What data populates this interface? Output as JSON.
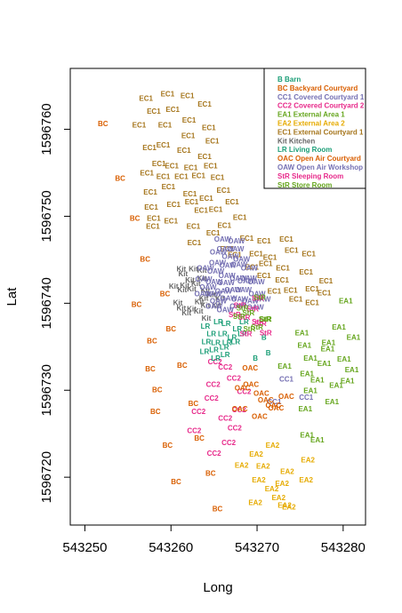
{
  "chart_data": {
    "type": "scatter",
    "xlabel": "Long",
    "ylabel": "Lat",
    "xlim": [
      543248.3,
      543282.6
    ],
    "ylim": [
      1596714.5,
      1596767.0
    ],
    "xticks": [
      543250,
      543260,
      543270,
      543280
    ],
    "yticks": [
      1596720,
      1596730,
      1596740,
      1596750,
      1596760
    ],
    "legend_position": "top-right",
    "legend": [
      {
        "code": "B",
        "label": "B Barn",
        "color": "#1b9e77"
      },
      {
        "code": "BC",
        "label": "BC Backyard Courtyard",
        "color": "#d95f02"
      },
      {
        "code": "CC1",
        "label": "CC1 Covered Courtyard 1",
        "color": "#7570b3"
      },
      {
        "code": "CC2",
        "label": "CC2 Covered Courtyard 2",
        "color": "#e7298a"
      },
      {
        "code": "EA1",
        "label": "EA1 External Area 1",
        "color": "#66a61e"
      },
      {
        "code": "EA2",
        "label": "EA2 External Area 2",
        "color": "#e6ab02"
      },
      {
        "code": "EC1",
        "label": "EC1 External Courtyard 1",
        "color": "#a6761d"
      },
      {
        "code": "Kit",
        "label": "Kit Kitchen",
        "color": "#666666"
      },
      {
        "code": "LR",
        "label": "LR Living Room",
        "color": "#1b9e77"
      },
      {
        "code": "OAC",
        "label": "OAC Open Air Courtyard",
        "color": "#d95f02"
      },
      {
        "code": "OAW",
        "label": "OAW Open Air Workshop",
        "color": "#7570b3"
      },
      {
        "code": "StR",
        "label": "StR Sleeping Room",
        "color": "#e7298a"
      },
      {
        "code": "StR",
        "label": "StR Store Room",
        "color": "#66a61e"
      }
    ],
    "series": [
      {
        "code": "B",
        "points": [
          [
            543270.8,
            1596736.0
          ],
          [
            543271.3,
            1596734.2
          ],
          [
            543269.8,
            1596733.6
          ]
        ]
      },
      {
        "code": "BC",
        "points": [
          [
            543252.1,
            1596760.6
          ],
          [
            543254.1,
            1596754.3
          ],
          [
            543255.8,
            1596749.7
          ],
          [
            543257.0,
            1596745.0
          ],
          [
            543256.0,
            1596739.8
          ],
          [
            543257.8,
            1596735.6
          ],
          [
            543257.6,
            1596732.4
          ],
          [
            543261.3,
            1596732.8
          ],
          [
            543260.0,
            1596737.0
          ],
          [
            543259.3,
            1596741.0
          ],
          [
            543258.4,
            1596730.0
          ],
          [
            543262.6,
            1596728.4
          ],
          [
            543258.2,
            1596727.5
          ],
          [
            543259.6,
            1596723.6
          ],
          [
            543263.3,
            1596724.4
          ],
          [
            543260.6,
            1596719.4
          ],
          [
            543264.6,
            1596720.4
          ],
          [
            543265.4,
            1596716.3
          ]
        ]
      },
      {
        "code": "CC1",
        "points": [
          [
            543273.4,
            1596731.2
          ],
          [
            543272.0,
            1596728.6
          ],
          [
            543275.7,
            1596729.1
          ]
        ]
      },
      {
        "code": "CC2",
        "points": [
          [
            543266.3,
            1596732.6
          ],
          [
            543264.9,
            1596730.6
          ],
          [
            543265.1,
            1596733.2
          ],
          [
            543267.3,
            1596731.3
          ],
          [
            543264.7,
            1596729.0
          ],
          [
            543268.5,
            1596729.8
          ],
          [
            543267.9,
            1596727.7
          ],
          [
            543266.3,
            1596726.7
          ],
          [
            543263.2,
            1596727.5
          ],
          [
            543267.4,
            1596725.6
          ],
          [
            543266.7,
            1596723.9
          ],
          [
            543262.7,
            1596725.3
          ],
          [
            543265.0,
            1596722.7
          ]
        ]
      },
      {
        "code": "EA1",
        "points": [
          [
            543280.3,
            1596740.2
          ],
          [
            543279.5,
            1596737.2
          ],
          [
            543281.2,
            1596736.0
          ],
          [
            543278.3,
            1596735.4
          ],
          [
            543280.1,
            1596733.5
          ],
          [
            543277.8,
            1596733.0
          ],
          [
            543276.2,
            1596733.6
          ],
          [
            543275.8,
            1596731.8
          ],
          [
            543277.0,
            1596731.1
          ],
          [
            543278.2,
            1596734.7
          ],
          [
            543281.0,
            1596732.3
          ],
          [
            543280.5,
            1596731.0
          ],
          [
            543279.2,
            1596730.5
          ],
          [
            543278.7,
            1596728.6
          ],
          [
            543276.2,
            1596729.9
          ],
          [
            543277.0,
            1596724.2
          ],
          [
            543275.5,
            1596735.1
          ],
          [
            543273.2,
            1596732.7
          ],
          [
            543275.2,
            1596736.5
          ],
          [
            543275.6,
            1596727.8
          ],
          [
            543275.8,
            1596724.8
          ]
        ]
      },
      {
        "code": "EA2",
        "points": [
          [
            543269.9,
            1596722.6
          ],
          [
            543271.8,
            1596723.6
          ],
          [
            543273.5,
            1596720.6
          ],
          [
            543272.9,
            1596719.2
          ],
          [
            543275.9,
            1596721.9
          ],
          [
            543275.7,
            1596719.6
          ],
          [
            543273.2,
            1596716.7
          ],
          [
            543272.5,
            1596717.6
          ],
          [
            543270.7,
            1596721.2
          ],
          [
            543268.2,
            1596721.3
          ],
          [
            543270.2,
            1596719.6
          ],
          [
            543271.7,
            1596718.6
          ],
          [
            543269.8,
            1596717.0
          ],
          [
            543273.7,
            1596716.5
          ]
        ]
      },
      {
        "code": "EC1",
        "points": [
          [
            543257.1,
            1596763.5
          ],
          [
            543259.6,
            1596764.0
          ],
          [
            543261.9,
            1596763.8
          ],
          [
            543263.9,
            1596762.8
          ],
          [
            543258.0,
            1596762.0
          ],
          [
            543260.2,
            1596762.2
          ],
          [
            543262.1,
            1596761.0
          ],
          [
            543264.4,
            1596760.1
          ],
          [
            543256.3,
            1596760.4
          ],
          [
            543259.3,
            1596760.4
          ],
          [
            543262.0,
            1596759.2
          ],
          [
            543264.8,
            1596758.6
          ],
          [
            543257.5,
            1596757.8
          ],
          [
            543259.1,
            1596758.1
          ],
          [
            543261.5,
            1596757.5
          ],
          [
            543263.9,
            1596756.8
          ],
          [
            543258.6,
            1596756.0
          ],
          [
            543260.1,
            1596755.7
          ],
          [
            543262.3,
            1596755.5
          ],
          [
            543264.6,
            1596755.7
          ],
          [
            543257.2,
            1596754.9
          ],
          [
            543259.1,
            1596754.5
          ],
          [
            543261.2,
            1596754.5
          ],
          [
            543263.2,
            1596754.6
          ],
          [
            543265.4,
            1596754.4
          ],
          [
            543266.1,
            1596752.9
          ],
          [
            543259.7,
            1596753.3
          ],
          [
            543262.2,
            1596752.5
          ],
          [
            543264.1,
            1596752.0
          ],
          [
            543267.1,
            1596751.6
          ],
          [
            543257.6,
            1596752.7
          ],
          [
            543257.7,
            1596751.0
          ],
          [
            543260.3,
            1596751.3
          ],
          [
            543262.4,
            1596751.6
          ],
          [
            543265.2,
            1596750.7
          ],
          [
            543268.0,
            1596749.8
          ],
          [
            543263.5,
            1596750.6
          ],
          [
            543260.0,
            1596749.4
          ],
          [
            543262.6,
            1596748.8
          ],
          [
            543264.9,
            1596748.0
          ],
          [
            543266.2,
            1596748.9
          ],
          [
            543258.0,
            1596749.7
          ],
          [
            543257.9,
            1596748.8
          ],
          [
            543262.7,
            1596746.9
          ],
          [
            543266.5,
            1596746.2
          ],
          [
            543268.8,
            1596747.4
          ],
          [
            543270.8,
            1596747.1
          ],
          [
            543273.4,
            1596747.3
          ],
          [
            543267.4,
            1596745.5
          ],
          [
            543269.9,
            1596745.6
          ],
          [
            543271.5,
            1596745.2
          ],
          [
            543274.0,
            1596746.0
          ],
          [
            543269.4,
            1596744.1
          ],
          [
            543271.0,
            1596744.5
          ],
          [
            543273.0,
            1596744.0
          ],
          [
            543276.0,
            1596745.6
          ],
          [
            543270.8,
            1596743.1
          ],
          [
            543272.9,
            1596742.6
          ],
          [
            543275.7,
            1596743.5
          ],
          [
            543272.0,
            1596741.3
          ],
          [
            543273.9,
            1596741.4
          ],
          [
            543276.4,
            1596741.6
          ],
          [
            543274.5,
            1596740.4
          ],
          [
            543276.4,
            1596740.0
          ],
          [
            543278.0,
            1596742.5
          ],
          [
            543277.8,
            1596741.1
          ]
        ]
      },
      {
        "code": "Kit",
        "points": [
          [
            543261.2,
            1596743.9
          ],
          [
            543262.6,
            1596743.9
          ],
          [
            543263.6,
            1596743.7
          ],
          [
            543261.4,
            1596743.3
          ],
          [
            543262.2,
            1596742.6
          ],
          [
            543261.6,
            1596742.0
          ],
          [
            543262.9,
            1596742.2
          ],
          [
            543263.6,
            1596742.8
          ],
          [
            543261.3,
            1596741.5
          ],
          [
            543262.4,
            1596741.6
          ],
          [
            543264.0,
            1596741.4
          ],
          [
            543260.3,
            1596741.9
          ],
          [
            543264.7,
            1596740.9
          ],
          [
            543265.7,
            1596740.5
          ],
          [
            543263.3,
            1596740.1
          ],
          [
            543261.2,
            1596739.4
          ],
          [
            543260.8,
            1596740.0
          ],
          [
            543262.4,
            1596739.3
          ],
          [
            543264.0,
            1596739.7
          ],
          [
            543265.3,
            1596739.7
          ],
          [
            543261.8,
            1596738.8
          ],
          [
            543263.2,
            1596739.0
          ],
          [
            543264.1,
            1596738.2
          ],
          [
            543263.8,
            1596740.5
          ]
        ]
      },
      {
        "code": "LR",
        "points": [
          [
            543264.0,
            1596737.3
          ],
          [
            543265.5,
            1596737.8
          ],
          [
            543266.4,
            1596737.6
          ],
          [
            543267.7,
            1596737.0
          ],
          [
            543268.5,
            1596737.8
          ],
          [
            543264.7,
            1596736.4
          ],
          [
            543266.0,
            1596736.4
          ],
          [
            543267.1,
            1596736.0
          ],
          [
            543268.3,
            1596736.4
          ],
          [
            543264.1,
            1596735.5
          ],
          [
            543265.2,
            1596735.4
          ],
          [
            543266.5,
            1596735.4
          ],
          [
            543263.9,
            1596734.4
          ],
          [
            543265.0,
            1596734.6
          ],
          [
            543266.2,
            1596734.9
          ],
          [
            543267.5,
            1596735.5
          ],
          [
            543265.2,
            1596733.6
          ],
          [
            543266.3,
            1596734.0
          ]
        ]
      },
      {
        "code": "OAC",
        "points": [
          [
            543269.2,
            1596732.5
          ],
          [
            543269.3,
            1596730.6
          ],
          [
            543268.0,
            1596727.8
          ],
          [
            543270.5,
            1596729.6
          ],
          [
            543270.3,
            1596726.9
          ],
          [
            543271.0,
            1596728.8
          ],
          [
            543272.2,
            1596727.9
          ],
          [
            543273.4,
            1596729.2
          ],
          [
            543268.3,
            1596730.2
          ],
          [
            543271.9,
            1596728.2
          ]
        ]
      },
      {
        "code": "OAW",
        "points": [
          [
            543266.0,
            1596747.3
          ],
          [
            543267.6,
            1596747.1
          ],
          [
            543266.3,
            1596746.2
          ],
          [
            543267.5,
            1596746.2
          ],
          [
            543265.5,
            1596745.8
          ],
          [
            543266.9,
            1596745.3
          ],
          [
            543268.2,
            1596745.0
          ],
          [
            543265.4,
            1596744.6
          ],
          [
            543266.6,
            1596744.3
          ],
          [
            543267.9,
            1596744.4
          ],
          [
            543269.1,
            1596744.0
          ],
          [
            543264.0,
            1596744.0
          ],
          [
            543265.2,
            1596743.6
          ],
          [
            543266.5,
            1596743.1
          ],
          [
            543267.8,
            1596742.8
          ],
          [
            543269.0,
            1596742.8
          ],
          [
            543263.8,
            1596742.7
          ],
          [
            543265.0,
            1596742.4
          ],
          [
            543266.4,
            1596742.3
          ],
          [
            543268.7,
            1596742.5
          ],
          [
            543269.9,
            1596742.4
          ],
          [
            543264.9,
            1596741.0
          ],
          [
            543266.1,
            1596741.3
          ],
          [
            543267.2,
            1596741.5
          ],
          [
            543268.4,
            1596741.5
          ],
          [
            543270.0,
            1596741.0
          ],
          [
            543264.3,
            1596741.8
          ],
          [
            543263.7,
            1596741.0
          ],
          [
            543265.5,
            1596740.2
          ],
          [
            543266.7,
            1596740.5
          ],
          [
            543268.0,
            1596740.4
          ],
          [
            543269.2,
            1596740.2
          ],
          [
            543270.6,
            1596740.4
          ],
          [
            543265.0,
            1596739.6
          ],
          [
            543266.3,
            1596739.2
          ],
          [
            543267.8,
            1596739.6
          ],
          [
            543269.8,
            1596739.5
          ]
        ]
      },
      {
        "code": "StR",
        "points": [
          [
            543270.1,
            1596740.5
          ],
          [
            543268.0,
            1596739.7
          ],
          [
            543269.5,
            1596739.3
          ],
          [
            543270.4,
            1596737.6
          ],
          [
            543267.4,
            1596738.6
          ],
          [
            543268.5,
            1596738.3
          ],
          [
            543270.1,
            1596737.8
          ],
          [
            543268.7,
            1596736.4
          ],
          [
            543271.0,
            1596736.5
          ]
        ]
      },
      {
        "code": "StR",
        "points": [
          [
            543270.3,
            1596740.6
          ],
          [
            543268.3,
            1596739.4
          ],
          [
            543267.9,
            1596738.4
          ],
          [
            543269.0,
            1596738.8
          ],
          [
            543270.9,
            1596738.1
          ],
          [
            543270.0,
            1596737.2
          ],
          [
            543271.0,
            1596738.1
          ],
          [
            543269.1,
            1596737.0
          ]
        ]
      }
    ]
  }
}
